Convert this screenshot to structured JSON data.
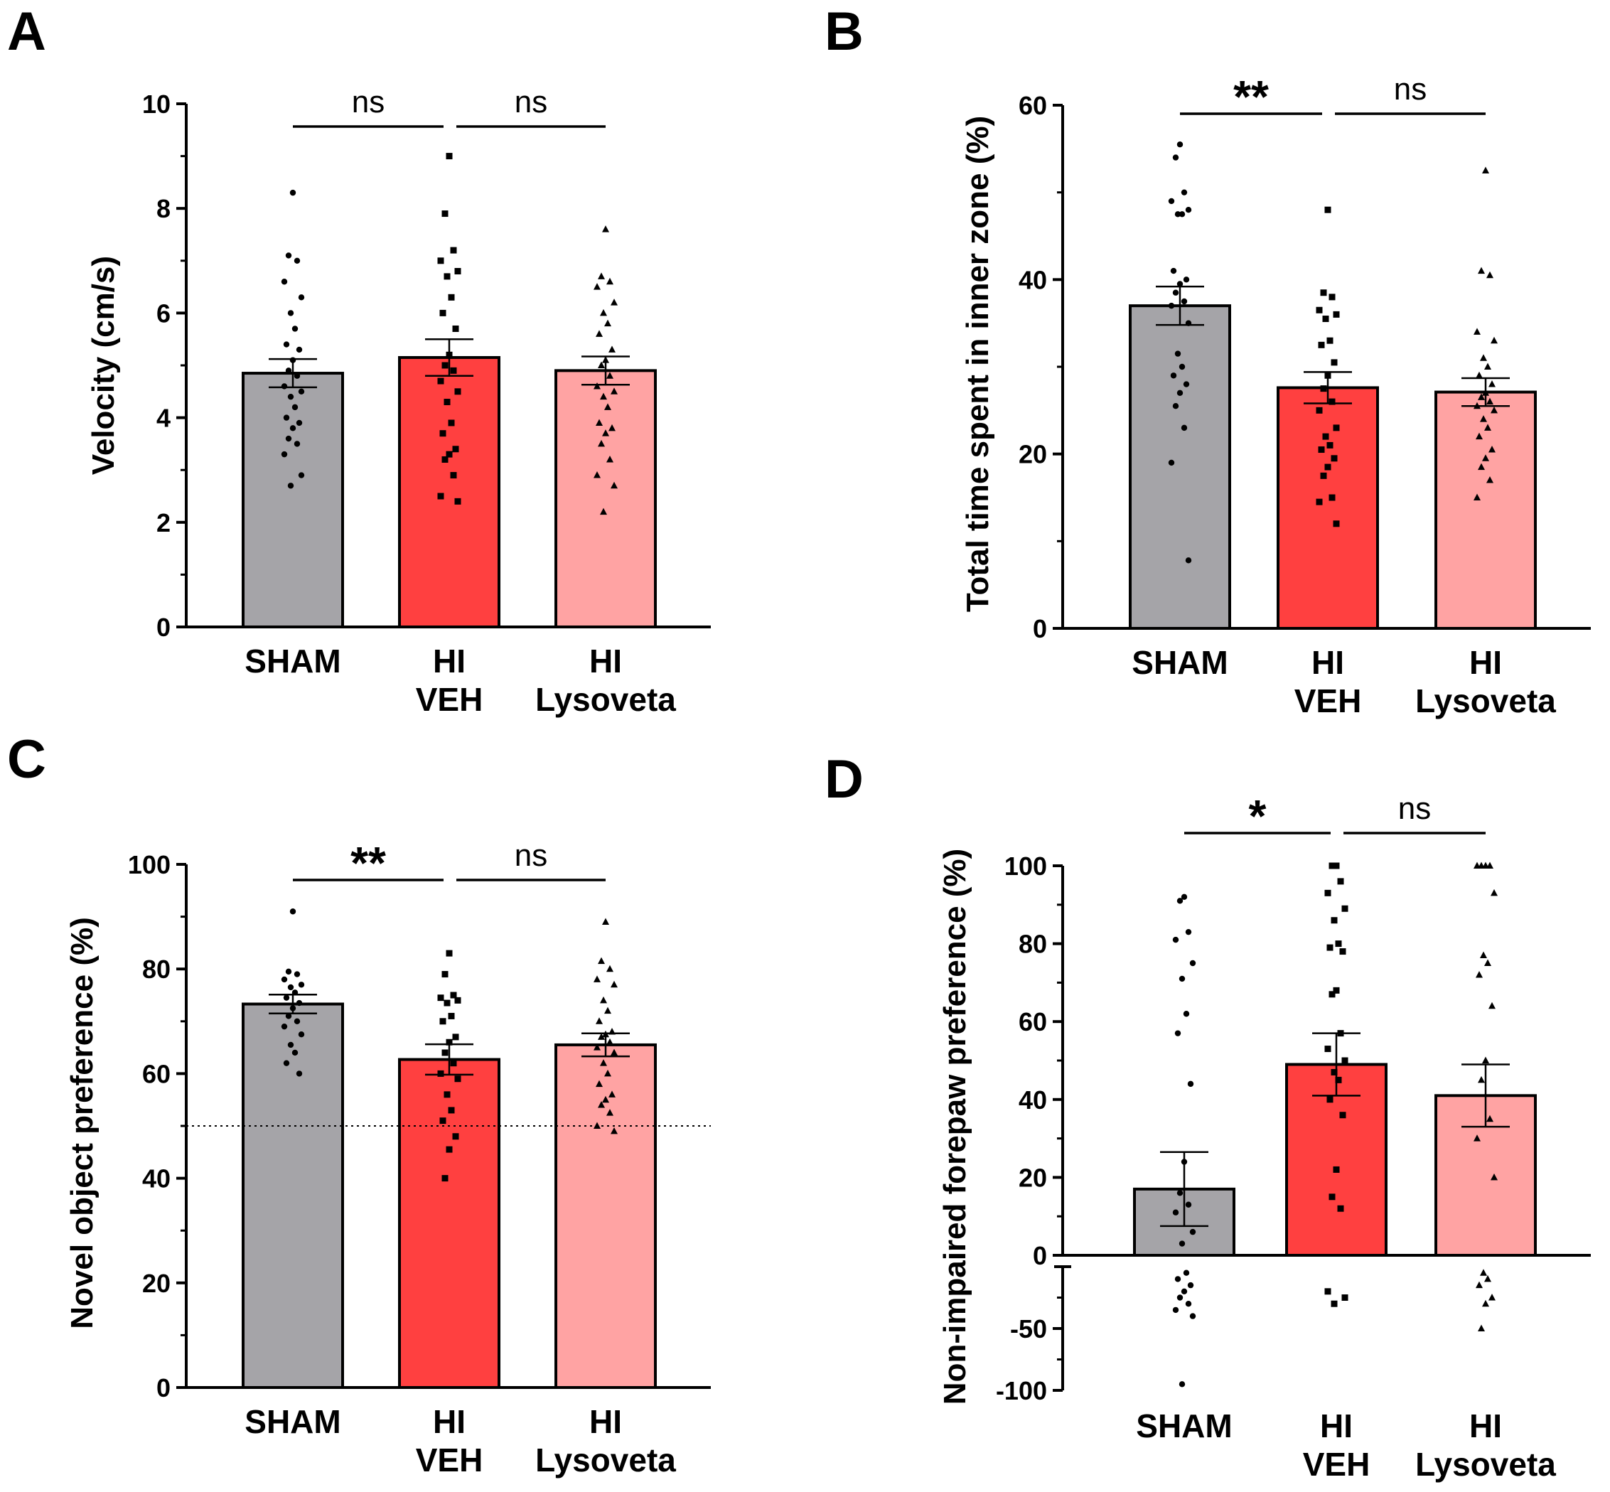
{
  "chart_data": [
    {
      "panel": "A",
      "type": "bar",
      "ylabel": "Velocity (cm/s)",
      "ylim": [
        0,
        10
      ],
      "yticks": [
        "0",
        "2",
        "4",
        "6",
        "8",
        "10"
      ],
      "categories": [
        [
          "SHAM"
        ],
        [
          "HI",
          "VEH"
        ],
        [
          "HI",
          "Lysoveta"
        ]
      ],
      "values": [
        4.85,
        5.15,
        4.9
      ],
      "sem": [
        0.27,
        0.35,
        0.27
      ],
      "colors": [
        "#a5a4a8",
        "#ff4040",
        "#ffa3a3"
      ],
      "markers": [
        "circle",
        "square",
        "triangle"
      ],
      "points": [
        [
          8.3,
          7.1,
          7.0,
          6.6,
          6.3,
          6.0,
          5.7,
          5.4,
          5.3,
          5.1,
          4.9,
          4.8,
          4.6,
          4.5,
          4.4,
          4.2,
          4.0,
          3.9,
          3.8,
          3.6,
          3.5,
          3.3,
          2.9,
          2.7
        ],
        [
          9.0,
          7.9,
          7.2,
          7.0,
          6.8,
          6.7,
          6.3,
          6.0,
          5.7,
          5.2,
          5.0,
          4.9,
          4.7,
          4.5,
          4.3,
          3.9,
          3.7,
          3.4,
          3.3,
          3.2,
          2.9,
          2.5,
          2.4
        ],
        [
          7.6,
          6.7,
          6.6,
          6.5,
          6.2,
          6.0,
          5.8,
          5.6,
          5.3,
          5.1,
          5.0,
          4.8,
          4.6,
          4.5,
          4.4,
          4.2,
          3.9,
          3.8,
          3.7,
          3.5,
          3.2,
          2.9,
          2.7,
          2.2
        ]
      ],
      "comparisons": [
        {
          "from": 0,
          "to": 1,
          "label": "ns"
        },
        {
          "from": 1,
          "to": 2,
          "label": "ns"
        }
      ],
      "ref_line": null,
      "axis_break": null
    },
    {
      "panel": "B",
      "type": "bar",
      "ylabel": "Total time spent in inner zone (%)",
      "ylim": [
        0,
        60
      ],
      "yticks": [
        "0",
        "20",
        "40",
        "60"
      ],
      "categories": [
        [
          "SHAM"
        ],
        [
          "HI",
          "VEH"
        ],
        [
          "HI",
          "Lysoveta"
        ]
      ],
      "values": [
        37.0,
        27.6,
        27.1
      ],
      "sem": [
        2.2,
        1.8,
        1.6
      ],
      "colors": [
        "#a5a4a8",
        "#ff4040",
        "#ffa3a3"
      ],
      "markers": [
        "circle",
        "square",
        "triangle"
      ],
      "points": [
        [
          55.5,
          54.0,
          50.0,
          49.0,
          48.0,
          47.5,
          47.5,
          41.0,
          40.0,
          39.5,
          38.5,
          37.5,
          37.0,
          35.0,
          31.5,
          30.0,
          29.0,
          28.0,
          27.0,
          25.5,
          23.0,
          19.0,
          7.8
        ],
        [
          48.0,
          38.5,
          38.0,
          36.5,
          36.0,
          35.5,
          33.0,
          32.5,
          30.5,
          29.0,
          27.5,
          26.0,
          25.0,
          23.0,
          22.0,
          21.0,
          20.5,
          19.5,
          18.5,
          17.5,
          15.0,
          14.5,
          12.0
        ],
        [
          52.5,
          41.0,
          40.5,
          34.0,
          33.0,
          31.0,
          30.0,
          29.0,
          28.0,
          27.0,
          26.5,
          26.0,
          25.5,
          25.0,
          24.0,
          23.0,
          22.0,
          20.5,
          19.5,
          18.5,
          17.0,
          15.0
        ]
      ],
      "comparisons": [
        {
          "from": 0,
          "to": 1,
          "label": "**"
        },
        {
          "from": 1,
          "to": 2,
          "label": "ns"
        }
      ],
      "ref_line": null,
      "axis_break": null
    },
    {
      "panel": "C",
      "type": "bar",
      "ylabel": "Novel object preference (%)",
      "ylim": [
        0,
        100
      ],
      "yticks": [
        "0",
        "20",
        "40",
        "60",
        "80",
        "100"
      ],
      "categories": [
        [
          "SHAM"
        ],
        [
          "HI",
          "VEH"
        ],
        [
          "HI",
          "Lysoveta"
        ]
      ],
      "values": [
        73.3,
        62.7,
        65.5
      ],
      "sem": [
        1.8,
        2.9,
        2.2
      ],
      "colors": [
        "#a5a4a8",
        "#ff4040",
        "#ffa3a3"
      ],
      "markers": [
        "circle",
        "square",
        "triangle"
      ],
      "points": [
        [
          91.0,
          79.5,
          79.0,
          78.0,
          77.0,
          76.5,
          75.5,
          74.5,
          73.5,
          72.5,
          71.0,
          70.0,
          69.0,
          67.5,
          65.5,
          64.0,
          62.0,
          60.0
        ],
        [
          83.0,
          79.0,
          75.0,
          74.5,
          74.0,
          73.5,
          71.0,
          70.0,
          67.0,
          66.0,
          64.0,
          62.0,
          60.0,
          59.0,
          56.0,
          53.0,
          51.0,
          48.0,
          45.5,
          40.0
        ],
        [
          89.0,
          81.5,
          80.0,
          78.0,
          77.0,
          74.0,
          72.0,
          70.0,
          68.0,
          67.5,
          67.0,
          66.0,
          65.0,
          64.0,
          62.0,
          60.0,
          58.0,
          56.0,
          55.0,
          54.0,
          52.5,
          50.0,
          49.0
        ]
      ],
      "comparisons": [
        {
          "from": 0,
          "to": 1,
          "label": "**"
        },
        {
          "from": 1,
          "to": 2,
          "label": "ns"
        }
      ],
      "ref_line": 50,
      "axis_break": null
    },
    {
      "panel": "D",
      "type": "bar",
      "ylabel": "Non-impaired forepaw preference   (%)",
      "ylim": [
        -100,
        100
      ],
      "yticks": [
        "-100",
        "-50",
        "0",
        "20",
        "40",
        "60",
        "80",
        "100"
      ],
      "categories": [
        [
          "SHAM"
        ],
        [
          "HI",
          "VEH"
        ],
        [
          "HI",
          "Lysoveta"
        ]
      ],
      "values": [
        17.0,
        49.0,
        41.0
      ],
      "sem": [
        9.5,
        8.0,
        8.0
      ],
      "colors": [
        "#a5a4a8",
        "#ff4040",
        "#ffa3a3"
      ],
      "markers": [
        "circle",
        "square",
        "triangle"
      ],
      "points": [
        [
          92.0,
          91.0,
          83.0,
          81.0,
          75.0,
          71.0,
          62.0,
          57.0,
          44.0,
          24.0,
          16.0,
          13.0,
          11.0,
          6.0,
          3.0,
          -5.0,
          -10.0,
          -15.0,
          -20.0,
          -25.0,
          -30.0,
          -35.0,
          -40.0,
          -95.0
        ],
        [
          100.0,
          100.0,
          96.0,
          93.0,
          89.0,
          86.0,
          80.0,
          79.0,
          78.0,
          68.0,
          67.0,
          57.0,
          53.0,
          50.0,
          47.0,
          45.0,
          40.0,
          36.0,
          22.0,
          15.0,
          12.0,
          -20.0,
          -25.0,
          -30.0
        ],
        [
          100.0,
          100.0,
          100.0,
          100.0,
          93.0,
          77.0,
          75.0,
          72.0,
          64.0,
          50.0,
          45.0,
          35.0,
          30.0,
          20.0,
          -5.0,
          -10.0,
          -15.0,
          -25.0,
          -30.0,
          -50.0
        ]
      ],
      "comparisons": [
        {
          "from": 0,
          "to": 1,
          "label": "*"
        },
        {
          "from": 1,
          "to": 2,
          "label": "ns"
        }
      ],
      "ref_line": null,
      "axis_break": {
        "break_at": 0,
        "lower_min": -100,
        "lower_fraction": 0.26
      }
    }
  ]
}
